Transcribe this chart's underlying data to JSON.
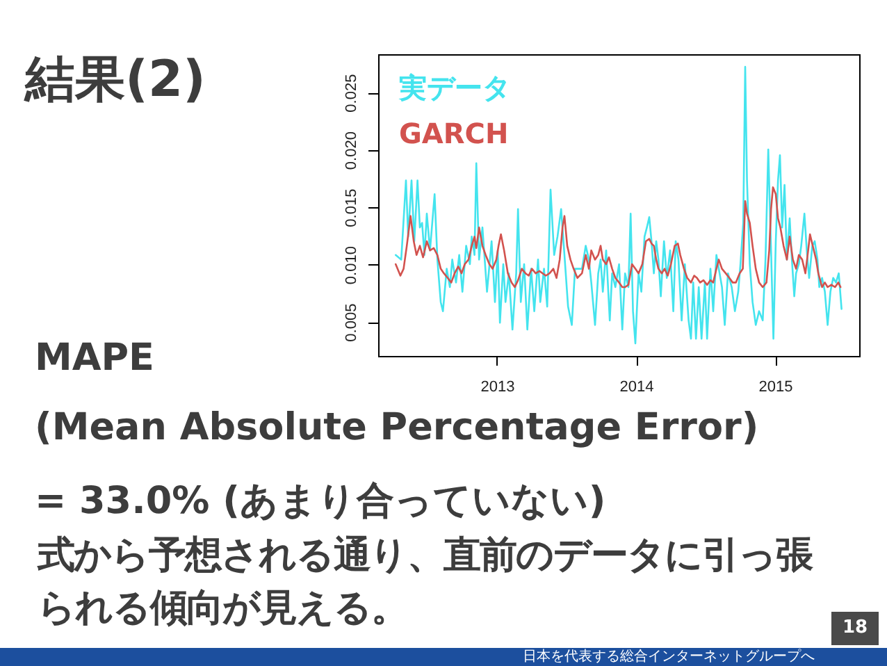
{
  "chart_data": {
    "type": "line",
    "title": "結果(2)",
    "annotations": [
      "MAPE",
      "(Mean Absolute Percentage Error)",
      "= 33.0% (あまり合っていない)",
      "式から予想される通り、直前のデータに引っ張られる傾向が見える。",
      "18",
      "日本を代表する総合インターネットグループへ"
    ],
    "xlim": [
      2012.14,
      2015.6
    ],
    "xticks": [
      2013,
      2014,
      2015
    ],
    "ylim": [
      0.0021,
      0.0284
    ],
    "yticks": [
      0.005,
      {
        "value": 0.01,
        "label": "0.010"
      },
      0.015,
      {
        "value": 0.02,
        "label": "0.020"
      },
      0.025
    ],
    "legend": "top left",
    "series": [
      {
        "name": "実データ",
        "color": "#44e4ee",
        "x": [
          2012.266,
          2012.306,
          2012.34,
          2012.356,
          2012.38,
          2012.4,
          2012.423,
          2012.44,
          2012.456,
          2012.473,
          2012.49,
          2012.513,
          2012.546,
          2012.566,
          2012.59,
          2012.606,
          2012.633,
          2012.656,
          2012.673,
          2012.7,
          2012.723,
          2012.746,
          2012.773,
          2012.8,
          2012.813,
          2012.833,
          2012.846,
          2012.866,
          2012.89,
          2012.923,
          2012.956,
          2012.98,
          2013.0,
          2013.016,
          2013.04,
          2013.056,
          2013.08,
          2013.106,
          2013.133,
          2013.146,
          2013.166,
          2013.19,
          2013.213,
          2013.24,
          2013.263,
          2013.29,
          2013.306,
          2013.333,
          2013.356,
          2013.38,
          2013.406,
          2013.43,
          2013.456,
          2013.48,
          2013.506,
          2013.533,
          2013.556,
          2013.606,
          2013.633,
          2013.656,
          2013.673,
          2013.7,
          2013.723,
          2013.74,
          2013.756,
          2013.78,
          2013.806,
          2013.823,
          2013.846,
          2013.873,
          2013.896,
          2013.916,
          2013.94,
          2013.956,
          2013.973,
          2013.99,
          2014.013,
          2014.033,
          2014.056,
          2014.073,
          2014.09,
          2014.106,
          2014.123,
          2014.14,
          2014.156,
          2014.173,
          2014.196,
          2014.216,
          2014.24,
          2014.263,
          2014.28,
          2014.3,
          2014.323,
          2014.346,
          2014.373,
          2014.39,
          2014.406,
          2014.426,
          2014.446,
          2014.466,
          2014.49,
          2014.506,
          2014.53,
          2014.55,
          2014.573,
          2014.613,
          2014.633,
          2014.656,
          2014.683,
          2014.706,
          2014.73,
          2014.746,
          2014.766,
          2014.78,
          2014.793,
          2014.813,
          2014.833,
          2014.856,
          2014.88,
          2014.906,
          2014.926,
          2014.946,
          2014.966,
          2014.983,
          2015.0,
          2015.016,
          2015.03,
          2015.046,
          2015.063,
          2015.08,
          2015.1,
          2015.116,
          2015.133,
          2015.146,
          2015.166,
          2015.183,
          2015.206,
          2015.223,
          2015.24,
          2015.263,
          2015.28,
          2015.3,
          2015.313,
          2015.333,
          2015.353,
          2015.373,
          2015.393,
          2015.413,
          2015.433,
          2015.453,
          2015.473
        ],
        "values": [
          0.0109,
          0.0105,
          0.0174,
          0.0125,
          0.0174,
          0.0121,
          0.0174,
          0.0133,
          0.0137,
          0.0109,
          0.0145,
          0.0113,
          0.0162,
          0.0105,
          0.0068,
          0.006,
          0.0097,
          0.0081,
          0.0105,
          0.0085,
          0.0109,
          0.0077,
          0.0117,
          0.0101,
          0.0125,
          0.0109,
          0.0189,
          0.0105,
          0.0133,
          0.0077,
          0.0121,
          0.0068,
          0.0113,
          0.005,
          0.0101,
          0.0068,
          0.0093,
          0.0044,
          0.0093,
          0.0149,
          0.0068,
          0.0101,
          0.0044,
          0.0097,
          0.006,
          0.0105,
          0.0068,
          0.0097,
          0.0064,
          0.0166,
          0.0109,
          0.0125,
          0.0149,
          0.0109,
          0.0064,
          0.0048,
          0.0097,
          0.0097,
          0.0117,
          0.0105,
          0.0085,
          0.0048,
          0.0093,
          0.0105,
          0.0077,
          0.0113,
          0.0052,
          0.0093,
          0.0081,
          0.0101,
          0.0044,
          0.0093,
          0.0081,
          0.0145,
          0.006,
          0.0032,
          0.0093,
          0.0077,
          0.0125,
          0.0133,
          0.0142,
          0.0121,
          0.0093,
          0.0121,
          0.0105,
          0.0073,
          0.0121,
          0.0089,
          0.0113,
          0.006,
          0.0121,
          0.0105,
          0.0052,
          0.0101,
          0.0052,
          0.0036,
          0.0085,
          0.0036,
          0.0081,
          0.0036,
          0.0085,
          0.0036,
          0.0097,
          0.006,
          0.0109,
          0.0081,
          0.0048,
          0.0093,
          0.0081,
          0.006,
          0.0077,
          0.0101,
          0.0137,
          0.0273,
          0.0174,
          0.0101,
          0.0068,
          0.0048,
          0.006,
          0.0052,
          0.0105,
          0.0201,
          0.0113,
          0.0036,
          0.0121,
          0.0174,
          0.0196,
          0.0133,
          0.017,
          0.0105,
          0.0141,
          0.0105,
          0.0073,
          0.0093,
          0.0101,
          0.0117,
          0.0145,
          0.0113,
          0.0089,
          0.0117,
          0.0121,
          0.0105,
          0.0081,
          0.0089,
          0.0077,
          0.0048,
          0.0077,
          0.0089,
          0.0085,
          0.0093,
          0.0062
        ]
      },
      {
        "name": "GARCH",
        "color": "#d2524e",
        "x": [
          2012.266,
          2012.3,
          2012.323,
          2012.346,
          2012.373,
          2012.396,
          2012.416,
          2012.44,
          2012.463,
          2012.49,
          2012.513,
          2012.54,
          2012.566,
          2012.59,
          2012.613,
          2012.64,
          2012.666,
          2012.69,
          2012.716,
          2012.74,
          2012.763,
          2012.79,
          2012.813,
          2012.833,
          2012.846,
          2012.866,
          2012.89,
          2012.913,
          2012.94,
          2012.963,
          2012.99,
          2013.006,
          2013.023,
          2013.046,
          2013.073,
          2013.1,
          2013.123,
          2013.146,
          2013.173,
          2013.2,
          2013.223,
          2013.246,
          2013.273,
          2013.3,
          2013.323,
          2013.346,
          2013.373,
          2013.4,
          2013.423,
          2013.446,
          2013.466,
          2013.48,
          2013.5,
          2013.523,
          2013.546,
          2013.573,
          2013.606,
          2013.633,
          2013.656,
          2013.673,
          2013.7,
          2013.723,
          2013.74,
          2013.756,
          2013.78,
          2013.8,
          2013.823,
          2013.846,
          2013.873,
          2013.896,
          2013.916,
          2013.94,
          2013.966,
          2013.99,
          2014.013,
          2014.04,
          2014.066,
          2014.09,
          2014.106,
          2014.123,
          2014.14,
          2014.156,
          2014.18,
          2014.2,
          2014.223,
          2014.246,
          2014.273,
          2014.296,
          2014.313,
          2014.34,
          2014.363,
          2014.39,
          2014.413,
          2014.433,
          2014.456,
          2014.48,
          2014.506,
          2014.53,
          2014.55,
          2014.573,
          2014.59,
          2014.613,
          2014.64,
          2014.666,
          2014.69,
          2014.713,
          2014.74,
          2014.763,
          2014.78,
          2014.793,
          2014.813,
          2014.833,
          2014.856,
          2014.88,
          2014.906,
          2014.933,
          2014.953,
          2014.966,
          2014.98,
          2015.0,
          2015.016,
          2015.033,
          2015.056,
          2015.08,
          2015.1,
          2015.123,
          2015.146,
          2015.166,
          2015.19,
          2015.213,
          2015.233,
          2015.246,
          2015.266,
          2015.29,
          2015.306,
          2015.333,
          2015.353,
          2015.373,
          2015.4,
          2015.426,
          2015.45,
          2015.466
        ],
        "values": [
          0.0101,
          0.0091,
          0.0097,
          0.0117,
          0.0143,
          0.0121,
          0.0109,
          0.0117,
          0.0107,
          0.0121,
          0.0113,
          0.0115,
          0.0109,
          0.0097,
          0.0093,
          0.0089,
          0.0085,
          0.0093,
          0.0099,
          0.0093,
          0.0101,
          0.0105,
          0.0117,
          0.0125,
          0.0115,
          0.0133,
          0.0117,
          0.0109,
          0.0101,
          0.0097,
          0.0105,
          0.0117,
          0.0127,
          0.0113,
          0.0093,
          0.0085,
          0.0081,
          0.0087,
          0.0097,
          0.0093,
          0.0091,
          0.0097,
          0.0093,
          0.0095,
          0.0093,
          0.0091,
          0.0093,
          0.0097,
          0.0089,
          0.0105,
          0.0133,
          0.0143,
          0.0117,
          0.0105,
          0.0097,
          0.0089,
          0.0093,
          0.0109,
          0.0097,
          0.0113,
          0.0105,
          0.0109,
          0.0117,
          0.0105,
          0.0101,
          0.0107,
          0.0097,
          0.0089,
          0.0085,
          0.0081,
          0.0081,
          0.0083,
          0.0101,
          0.0097,
          0.0093,
          0.0101,
          0.0121,
          0.0123,
          0.0119,
          0.0117,
          0.0105,
          0.0097,
          0.0093,
          0.0097,
          0.0091,
          0.0101,
          0.0117,
          0.0119,
          0.0109,
          0.0097,
          0.0089,
          0.0085,
          0.0091,
          0.0089,
          0.0085,
          0.0087,
          0.0083,
          0.0087,
          0.0085,
          0.0097,
          0.0105,
          0.0097,
          0.0093,
          0.0089,
          0.0085,
          0.0085,
          0.0093,
          0.0097,
          0.0156,
          0.0145,
          0.0137,
          0.0117,
          0.0097,
          0.0085,
          0.0081,
          0.0085,
          0.0113,
          0.0149,
          0.0168,
          0.0162,
          0.0141,
          0.0133,
          0.0117,
          0.0105,
          0.0125,
          0.0105,
          0.0097,
          0.0109,
          0.0105,
          0.0093,
          0.0113,
          0.0127,
          0.0117,
          0.0105,
          0.0093,
          0.0081,
          0.0085,
          0.0081,
          0.0083,
          0.0081,
          0.0085,
          0.0081
        ]
      }
    ]
  }
}
